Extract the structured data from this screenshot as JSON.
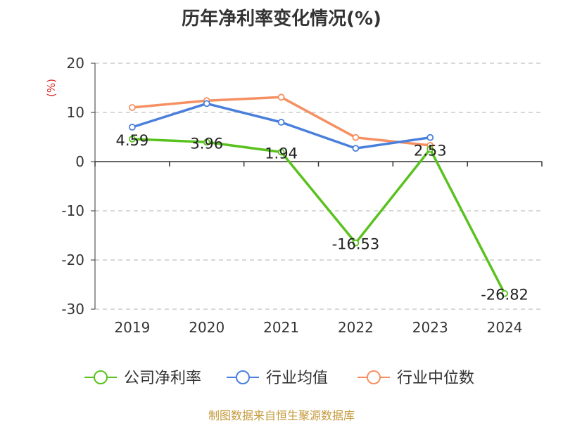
{
  "page": {
    "title": "历年净利率变化情况(%)",
    "source": "制图数据来自恒生聚源数据库"
  },
  "chart_data": {
    "type": "line",
    "title": "历年净利率变化情况(%)",
    "ylabel": "(%)",
    "categories": [
      "2019",
      "2020",
      "2021",
      "2022",
      "2023",
      "2024"
    ],
    "ylim": [
      -30,
      20
    ],
    "yticks": [
      20,
      10,
      0,
      -10,
      -20,
      -30
    ],
    "grid": true,
    "legend_position": "bottom",
    "series": [
      {
        "name": "公司净利率",
        "color": "#5ac21f",
        "values": [
          4.59,
          3.96,
          1.94,
          -16.53,
          2.53,
          -26.82
        ],
        "labels": [
          "4.59",
          "3.96",
          "1.94",
          "-16.53",
          "2.53",
          "-26.82"
        ]
      },
      {
        "name": "行业均值",
        "color": "#4a7fdc",
        "values": [
          7.0,
          11.8,
          8.0,
          2.7,
          4.9,
          null
        ]
      },
      {
        "name": "行业中位数",
        "color": "#f59062",
        "values": [
          11.0,
          12.4,
          13.1,
          4.9,
          3.3,
          null
        ]
      }
    ]
  }
}
